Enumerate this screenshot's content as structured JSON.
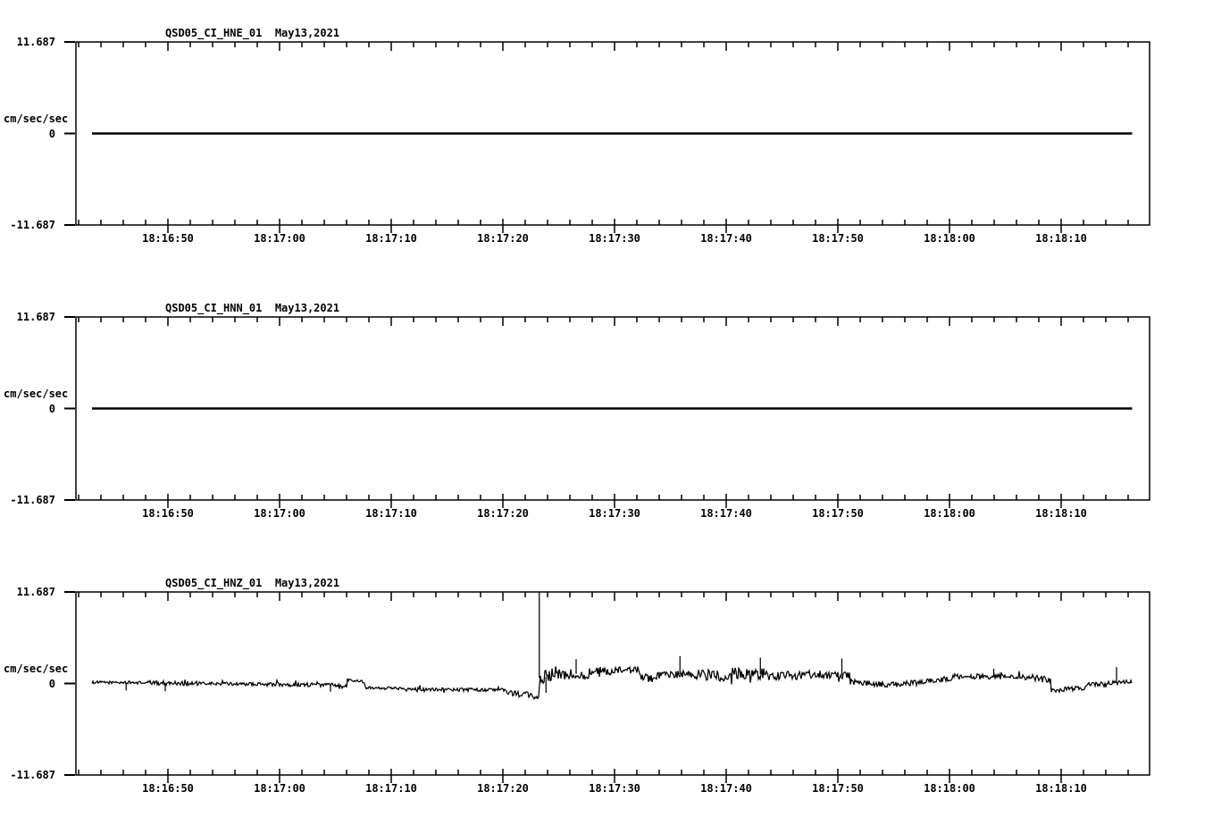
{
  "page": {
    "background": "#ffffff",
    "foreground": "#000000",
    "trace_color": "#000000"
  },
  "chart_data": [
    {
      "type": "line",
      "title": "QSD05_CI_HNE_01  May13,2021",
      "station": "QSD05",
      "network": "CI",
      "channel": "HNE",
      "location": "01",
      "date": "May13,2021",
      "ylabel": "cm/sec/sec",
      "ylim": [
        -11.687,
        11.687
      ],
      "ytick_labels": [
        "11.687",
        "0",
        "-11.687"
      ],
      "x_tick_labels": [
        "18:16:50",
        "18:17:00",
        "18:17:10",
        "18:17:20",
        "18:17:30",
        "18:17:40",
        "18:17:50",
        "18:18:00",
        "18:18:10"
      ],
      "x_axis": {
        "first_labeled_tick": "18:16:50",
        "major_interval_s": 10,
        "minor_interval_s": 2,
        "lead_in_s": 8.2,
        "total_span_s": 96.2
      },
      "grid": false,
      "legend": null,
      "waveform": {
        "kind": "flat",
        "value": 0,
        "t_start_s": 1.44,
        "t_end_s": 94.6
      }
    },
    {
      "type": "line",
      "title": "QSD05_CI_HNN_01  May13,2021",
      "station": "QSD05",
      "network": "CI",
      "channel": "HNN",
      "location": "01",
      "date": "May13,2021",
      "ylabel": "cm/sec/sec",
      "ylim": [
        -11.687,
        11.687
      ],
      "ytick_labels": [
        "11.687",
        "0",
        "-11.687"
      ],
      "x_tick_labels": [
        "18:16:50",
        "18:17:00",
        "18:17:10",
        "18:17:20",
        "18:17:30",
        "18:17:40",
        "18:17:50",
        "18:18:00",
        "18:18:10"
      ],
      "x_axis": {
        "first_labeled_tick": "18:16:50",
        "major_interval_s": 10,
        "minor_interval_s": 2,
        "lead_in_s": 8.2,
        "total_span_s": 96.2
      },
      "grid": false,
      "legend": null,
      "waveform": {
        "kind": "flat",
        "value": 0,
        "t_start_s": 1.44,
        "t_end_s": 94.6
      }
    },
    {
      "type": "line",
      "title": "QSD05_CI_HNZ_01  May13,2021",
      "station": "QSD05",
      "network": "CI",
      "channel": "HNZ",
      "location": "01",
      "date": "May13,2021",
      "ylabel": "cm/sec/sec",
      "ylim": [
        -11.687,
        11.687
      ],
      "ytick_labels": [
        "11.687",
        "0",
        "-11.687"
      ],
      "x_tick_labels": [
        "18:16:50",
        "18:17:00",
        "18:17:10",
        "18:17:20",
        "18:17:30",
        "18:17:40",
        "18:17:50",
        "18:18:00",
        "18:18:10"
      ],
      "x_axis": {
        "first_labeled_tick": "18:16:50",
        "major_interval_s": 10,
        "minor_interval_s": 2,
        "lead_in_s": 8.2,
        "total_span_s": 96.2
      },
      "grid": false,
      "legend": null,
      "waveform": {
        "kind": "noisy",
        "units": "cm/sec/sec",
        "t_start_s": 1.44,
        "t_end_s": 94.6,
        "segment_format": "[t_start_s, t_end_s, value_start, value_end, noise_amplitude]",
        "segments": [
          [
            1.44,
            6,
            0.15,
            0.1,
            0.18
          ],
          [
            6,
            11,
            0.1,
            0,
            0.28
          ],
          [
            11,
            17,
            0,
            -0.1,
            0.2
          ],
          [
            17,
            23,
            -0.1,
            -0.2,
            0.25
          ],
          [
            23,
            24.3,
            -0.2,
            -0.3,
            0.2
          ],
          [
            24.3,
            25.9,
            0.5,
            0.2,
            0.18
          ],
          [
            25.9,
            30,
            -0.5,
            -0.65,
            0.18
          ],
          [
            30,
            38.5,
            -0.7,
            -0.85,
            0.22
          ],
          [
            38.5,
            41.45,
            -1.1,
            -1.7,
            0.4
          ],
          [
            41.5,
            43,
            0.7,
            1.1,
            0.95
          ],
          [
            43,
            47,
            1.1,
            1.4,
            0.75
          ],
          [
            47,
            50.5,
            1.5,
            1.7,
            0.5
          ],
          [
            50.5,
            52,
            1.0,
            0.4,
            0.5
          ],
          [
            52,
            55,
            0.9,
            1.3,
            0.5
          ],
          [
            55,
            58.5,
            1.2,
            0.9,
            0.7
          ],
          [
            58.5,
            62,
            1.3,
            1.2,
            0.75
          ],
          [
            62,
            65.5,
            0.9,
            1.1,
            0.6
          ],
          [
            65.5,
            69.3,
            1.2,
            1.0,
            0.5
          ],
          [
            69.3,
            73,
            0.2,
            -0.2,
            0.35
          ],
          [
            73,
            76.1,
            -0.15,
            0.1,
            0.4
          ],
          [
            76.1,
            78.9,
            0.3,
            0.8,
            0.4
          ],
          [
            78.9,
            85.7,
            0.9,
            0.8,
            0.35
          ],
          [
            85.7,
            87.3,
            0.6,
            0.5,
            0.45
          ],
          [
            87.3,
            90.4,
            -0.9,
            -0.55,
            0.3
          ],
          [
            90.4,
            94.6,
            -0.2,
            0.25,
            0.28
          ]
        ],
        "spike_format": "[t_s, peak_value]",
        "spikes": [
          [
            4.5,
            -0.9
          ],
          [
            8,
            -1.0
          ],
          [
            22.8,
            -1.05
          ],
          [
            41.5,
            11.687
          ],
          [
            42.1,
            -1.2
          ],
          [
            44.8,
            3.1
          ],
          [
            54.1,
            3.5
          ],
          [
            61.3,
            3.3
          ],
          [
            68.6,
            3.2
          ],
          [
            82.2,
            1.9
          ],
          [
            93.2,
            2.1
          ]
        ]
      }
    }
  ]
}
